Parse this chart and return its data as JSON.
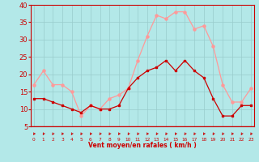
{
  "hours": [
    0,
    1,
    2,
    3,
    4,
    5,
    6,
    7,
    8,
    9,
    10,
    11,
    12,
    13,
    14,
    15,
    16,
    17,
    18,
    19,
    20,
    21,
    22,
    23
  ],
  "wind_avg": [
    13,
    13,
    12,
    11,
    10,
    9,
    11,
    10,
    10,
    11,
    16,
    19,
    21,
    22,
    24,
    21,
    24,
    21,
    19,
    13,
    8,
    8,
    11,
    11
  ],
  "wind_gust": [
    17,
    21,
    17,
    17,
    15,
    8,
    11,
    10,
    13,
    14,
    16,
    24,
    31,
    37,
    36,
    38,
    38,
    33,
    34,
    28,
    17,
    12,
    12,
    16
  ],
  "avg_color": "#cc0000",
  "gust_color": "#ff9999",
  "bg_color": "#b3e8e8",
  "grid_color": "#99cccc",
  "xlabel": "Vent moyen/en rafales ( km/h )",
  "xlabel_color": "#cc0000",
  "tick_color": "#cc0000",
  "arrow_color": "#cc0000",
  "ylim": [
    5,
    40
  ],
  "yticks": [
    5,
    10,
    15,
    20,
    25,
    30,
    35,
    40
  ],
  "spine_color": "#cc0000"
}
